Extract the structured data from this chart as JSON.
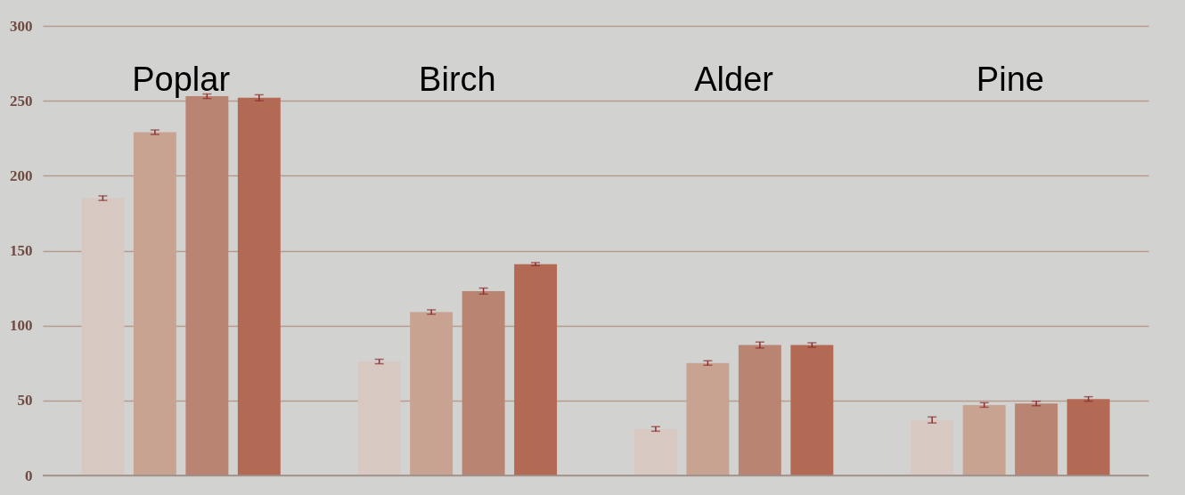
{
  "chart_data": {
    "type": "bar",
    "categories": [
      "Poplar",
      "Birch",
      "Alder",
      "Pine"
    ],
    "series": [
      {
        "color": "#d8c8c2",
        "values": [
          185,
          76,
          31,
          37
        ],
        "errors": [
          1.5,
          1.5,
          1.5,
          2
        ]
      },
      {
        "color": "#c8a392",
        "values": [
          229,
          109,
          75,
          47
        ],
        "errors": [
          1.5,
          1.5,
          1.5,
          1.5
        ]
      },
      {
        "color": "#ba8472",
        "values": [
          253,
          123,
          87,
          48
        ],
        "errors": [
          1.5,
          2,
          2,
          1.5
        ]
      },
      {
        "color": "#b36a55",
        "values": [
          252,
          141,
          87,
          51
        ],
        "errors": [
          2,
          1,
          1.5,
          1.5
        ]
      }
    ],
    "ylim": [
      0,
      300
    ],
    "yticks": [
      0,
      50,
      100,
      150,
      200,
      250,
      300
    ],
    "grid": "y"
  }
}
